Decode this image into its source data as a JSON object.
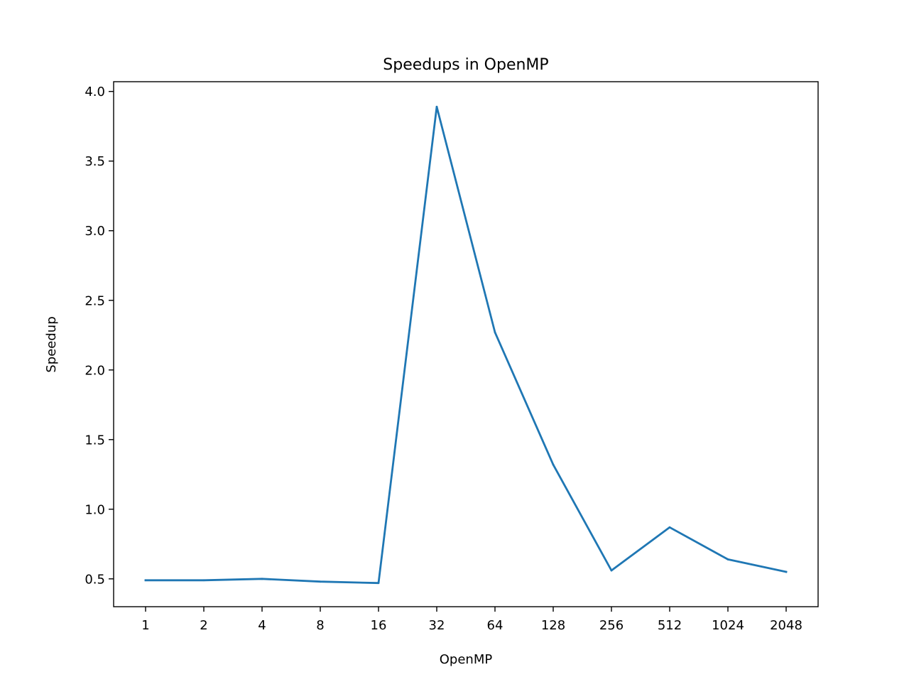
{
  "chart_data": {
    "type": "line",
    "title": "Speedups in OpenMP",
    "xlabel": "OpenMP",
    "ylabel": "Speedup",
    "categories": [
      "1",
      "2",
      "4",
      "8",
      "16",
      "32",
      "64",
      "128",
      "256",
      "512",
      "1024",
      "2048"
    ],
    "series": [
      {
        "values": [
          0.49,
          0.49,
          0.5,
          0.48,
          0.47,
          3.89,
          2.27,
          1.32,
          0.56,
          0.87,
          0.64,
          0.55
        ],
        "color": "#1f77b4"
      }
    ],
    "ylim": [
      0.3,
      4.07
    ],
    "yticks": [
      0.5,
      1.0,
      1.5,
      2.0,
      2.5,
      3.0,
      3.5,
      4.0
    ],
    "ytick_labels": [
      "0.5",
      "1.0",
      "1.5",
      "2.0",
      "2.5",
      "3.0",
      "3.5",
      "4.0"
    ],
    "grid": false,
    "legend": "none"
  }
}
